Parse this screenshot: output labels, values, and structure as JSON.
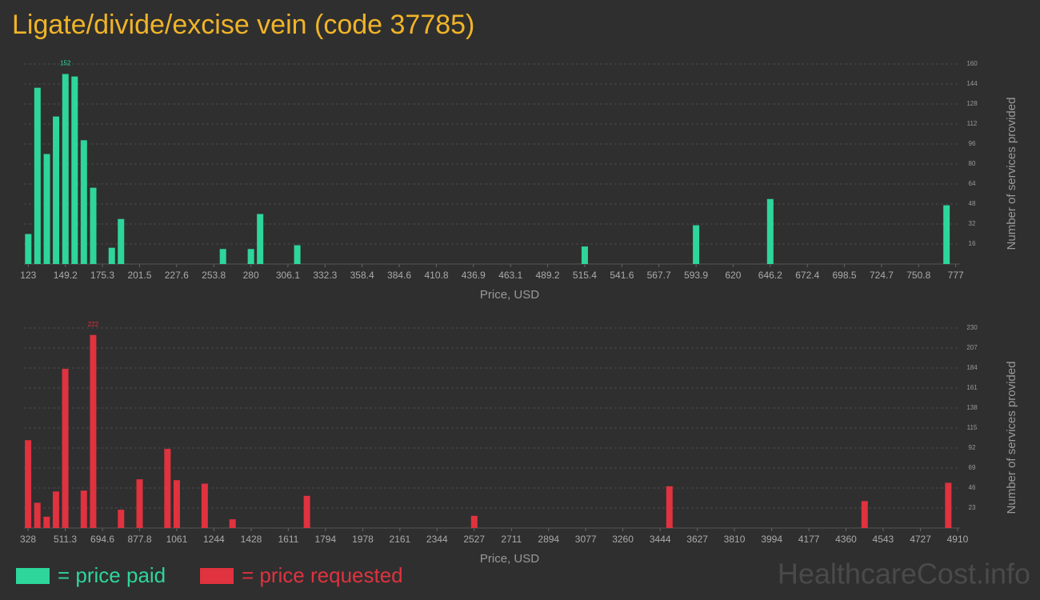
{
  "chart_data": [
    {
      "type": "bar",
      "title": "Ligate/divide/excise vein (code 37785)",
      "x": [
        123,
        129.5,
        136.1,
        142.6,
        149.2,
        155.7,
        162.2,
        168.8,
        181.9,
        188.4,
        260.3,
        280,
        286.5,
        312.7,
        515.4,
        593.9,
        646.2,
        770.5
      ],
      "series": [
        {
          "name": "= price paid",
          "color": "#2ed69b",
          "values": [
            24,
            141,
            88,
            118,
            152,
            150,
            99,
            61,
            13,
            36,
            12,
            12,
            40,
            15,
            14,
            31,
            52,
            47
          ]
        }
      ],
      "xlabel": "Price, USD",
      "ylabel": "Number of services provided",
      "xlim": [
        120,
        780
      ],
      "xticks": [
        123,
        149.2,
        175.3,
        201.5,
        227.6,
        253.8,
        280,
        306.1,
        332.3,
        358.4,
        384.6,
        410.8,
        436.9,
        463.1,
        489.2,
        515.4,
        541.6,
        567.7,
        593.9,
        620,
        646.2,
        672.4,
        698.5,
        724.7,
        750.8,
        777
      ],
      "ylim": [
        0,
        160
      ],
      "yticks": [
        16,
        32,
        48,
        64,
        80,
        96,
        112,
        128,
        144,
        160
      ],
      "grid": true
    },
    {
      "type": "bar",
      "x": [
        328,
        373.8,
        419.6,
        465.5,
        511.3,
        602.9,
        648.7,
        786.2,
        877.8,
        1015.3,
        1061.1,
        1198.6,
        1336,
        1702.6,
        2527.4,
        3489.6,
        4451.8,
        4864.2
      ],
      "series": [
        {
          "name": "= price requested",
          "color": "#e0323f",
          "values": [
            101,
            29,
            13,
            42,
            183,
            43,
            222,
            21,
            56,
            91,
            55,
            51,
            10,
            37,
            14,
            48,
            31,
            52
          ]
        }
      ],
      "xlabel": "Price, USD",
      "ylabel": "Number of services provided",
      "xlim": [
        308,
        4922
      ],
      "xticks": [
        328,
        511.3,
        694.6,
        877.8,
        1061,
        1244,
        1428,
        1611,
        1794,
        1978,
        2161,
        2344,
        2527,
        2711,
        2894,
        3077,
        3260,
        3444,
        3627,
        3810,
        3994,
        4177,
        4360,
        4543,
        4727,
        4910
      ],
      "ylim": [
        0,
        230
      ],
      "yticks": [
        23,
        46,
        69,
        92,
        115,
        138,
        161,
        184,
        207,
        230
      ],
      "grid": true
    }
  ],
  "watermark": "HealthcareCost.info"
}
